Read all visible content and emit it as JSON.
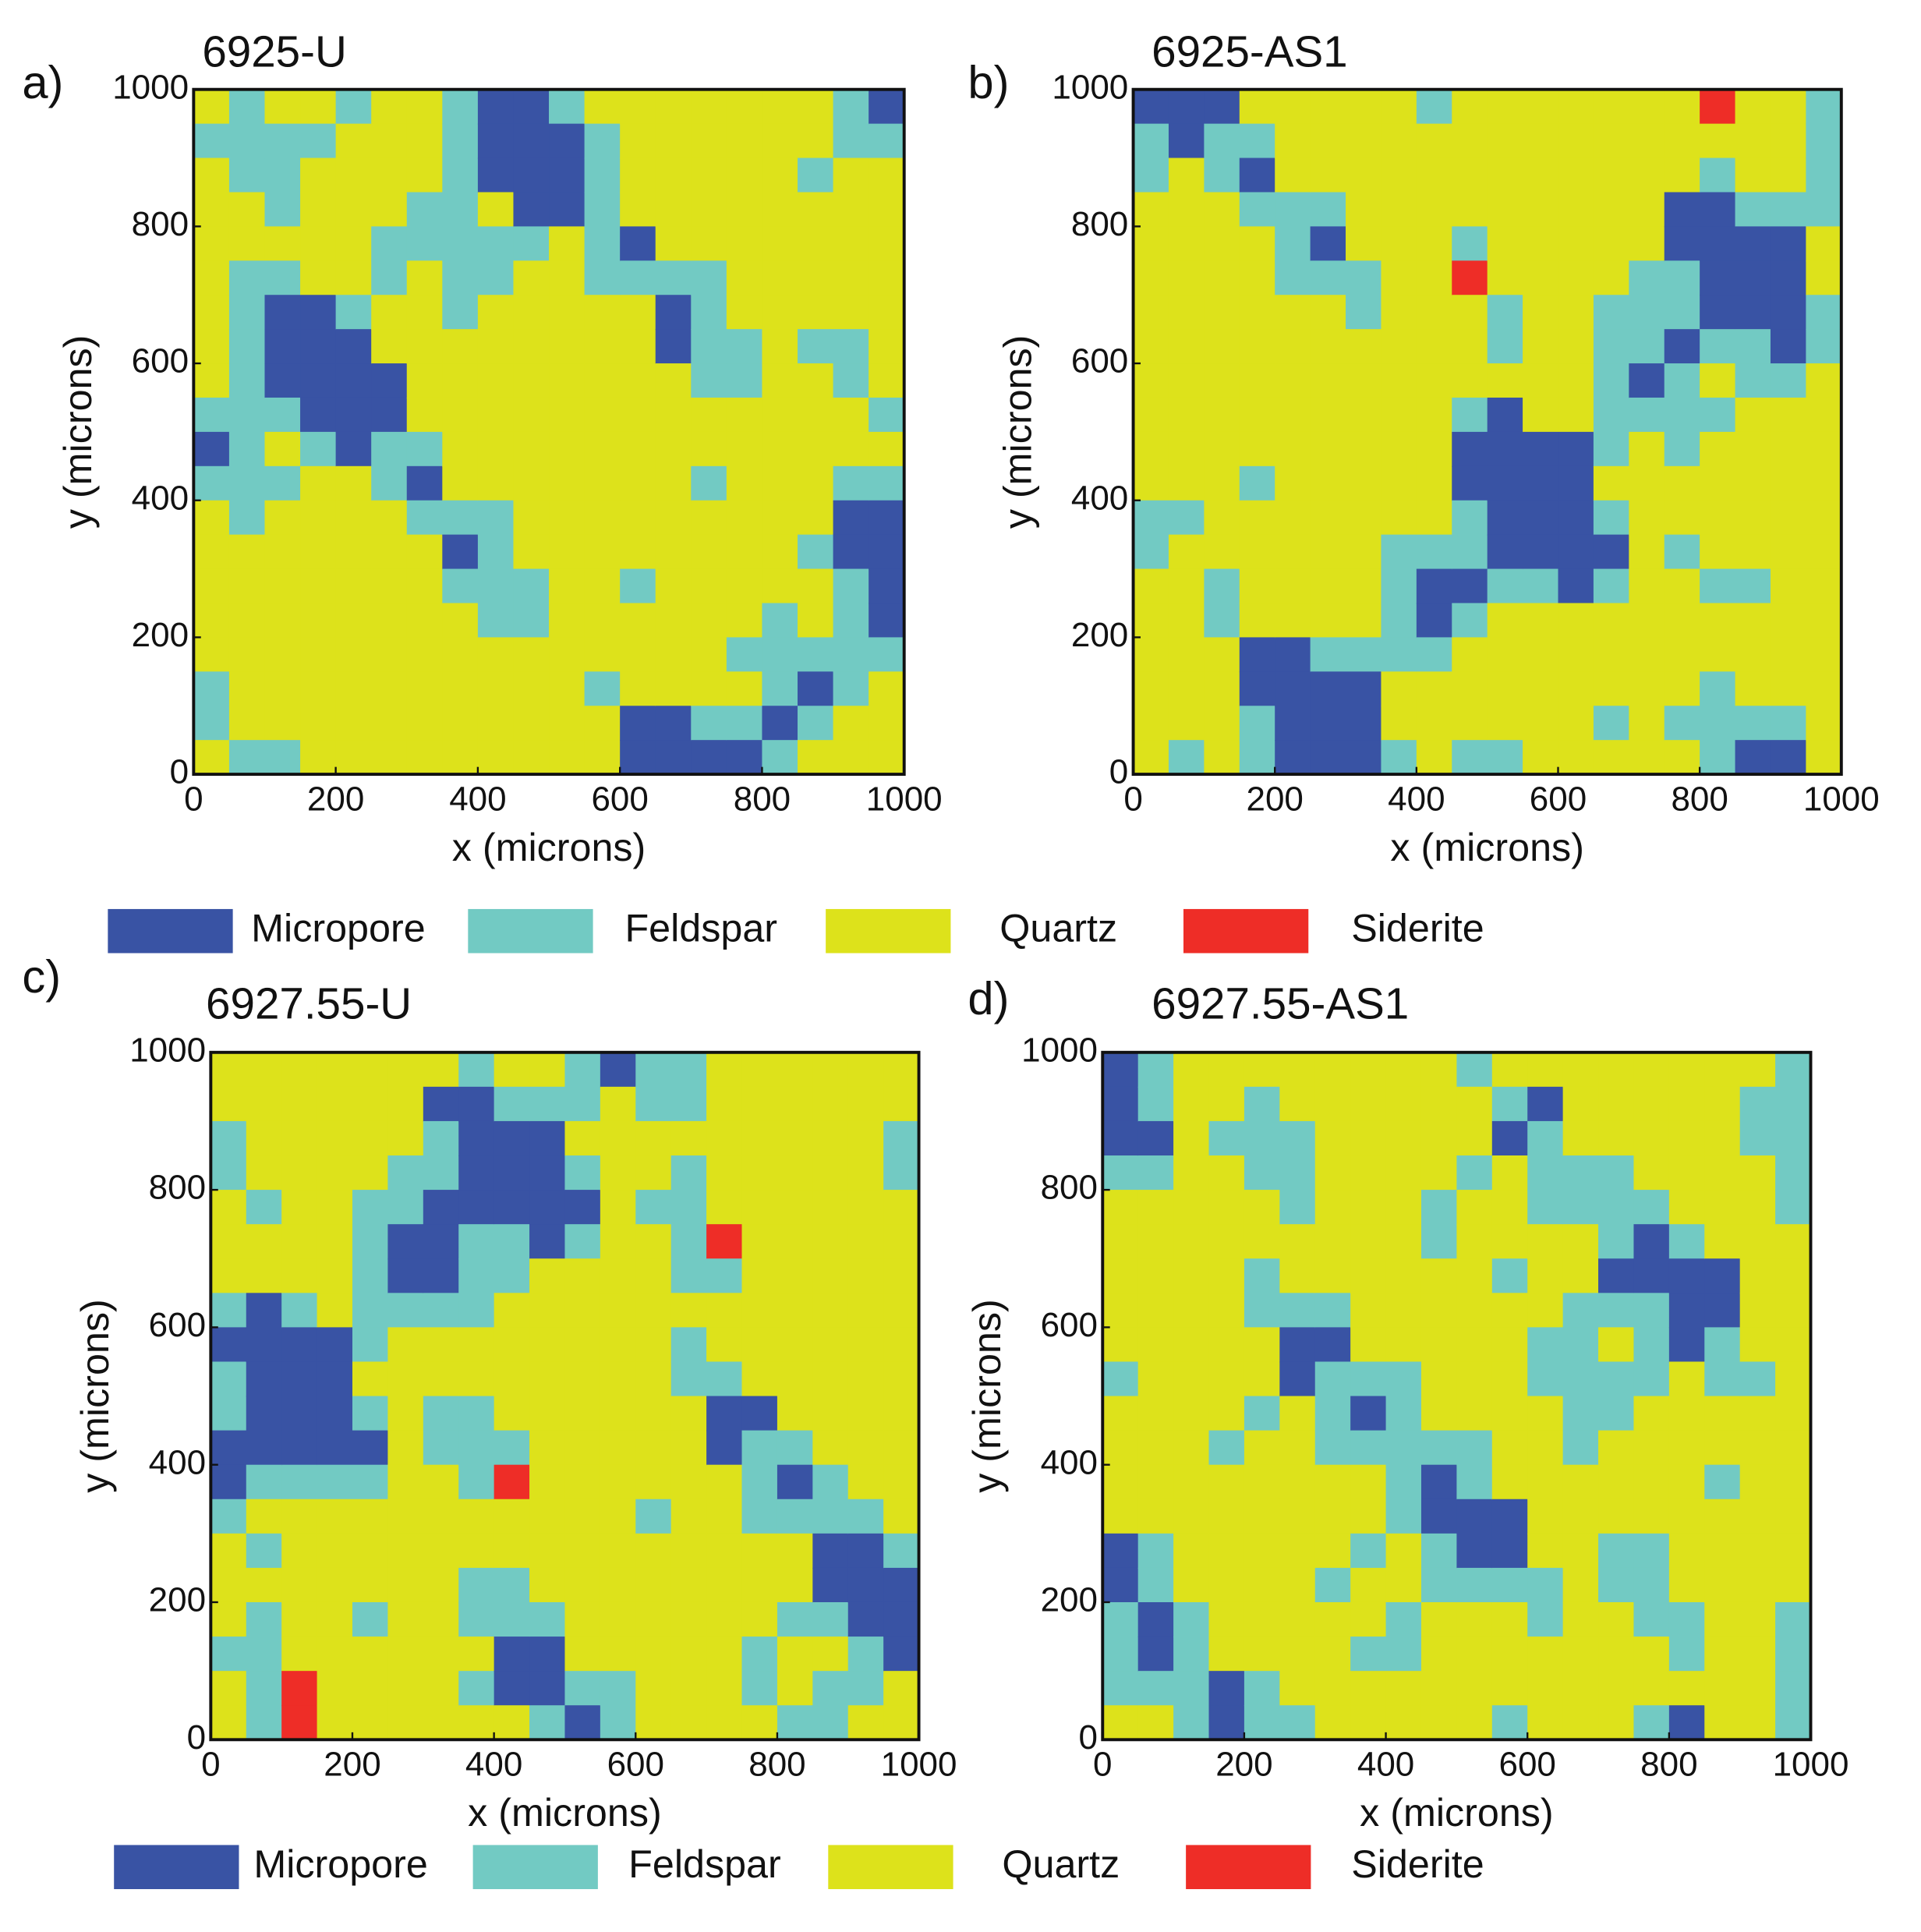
{
  "chart_data": [
    {
      "type": "contour",
      "panel_label": "a)",
      "title": "6925-U",
      "xlabel": "x (microns)",
      "ylabel": "y (microns)",
      "xlim": [
        0,
        1000
      ],
      "ylim": [
        0,
        1000
      ],
      "xticks": [
        0,
        200,
        400,
        600,
        800,
        1000
      ],
      "yticks": [
        0,
        200,
        400,
        600,
        800,
        1000
      ]
    },
    {
      "type": "contour",
      "panel_label": "b)",
      "title": "6925-AS1",
      "xlabel": "x (microns)",
      "ylabel": "y (microns)",
      "xlim": [
        0,
        1000
      ],
      "ylim": [
        0,
        1000
      ],
      "xticks": [
        0,
        200,
        400,
        600,
        800,
        1000
      ],
      "yticks": [
        0,
        200,
        400,
        600,
        800,
        1000
      ]
    },
    {
      "type": "contour",
      "panel_label": "c)",
      "title": "6927.55-U",
      "xlabel": "x (microns)",
      "ylabel": "y (microns)",
      "xlim": [
        0,
        1000
      ],
      "ylim": [
        0,
        1000
      ],
      "xticks": [
        0,
        200,
        400,
        600,
        800,
        1000
      ],
      "yticks": [
        0,
        200,
        400,
        600,
        800,
        1000
      ]
    },
    {
      "type": "contour",
      "panel_label": "d)",
      "title": "6927.55-AS1",
      "xlabel": "x (microns)",
      "ylabel": "y (microns)",
      "xlim": [
        0,
        1000
      ],
      "ylim": [
        0,
        1000
      ],
      "xticks": [
        0,
        200,
        400,
        600,
        800,
        1000
      ],
      "yticks": [
        0,
        200,
        400,
        600,
        800,
        1000
      ]
    }
  ],
  "legends": [
    {
      "entries": [
        {
          "name": "Micropore",
          "color": "#3953a4"
        },
        {
          "name": "Feldspar",
          "color": "#72cac3"
        },
        {
          "name": "Quartz",
          "color": "#dde21b"
        },
        {
          "name": "Siderite",
          "color": "#ee2d27"
        }
      ]
    },
    {
      "entries": [
        {
          "name": "Micropore",
          "color": "#3953a4"
        },
        {
          "name": "Feldspar",
          "color": "#72cac3"
        },
        {
          "name": "Quartz",
          "color": "#dde21b"
        },
        {
          "name": "Siderite",
          "color": "#ee2d27"
        }
      ]
    }
  ]
}
